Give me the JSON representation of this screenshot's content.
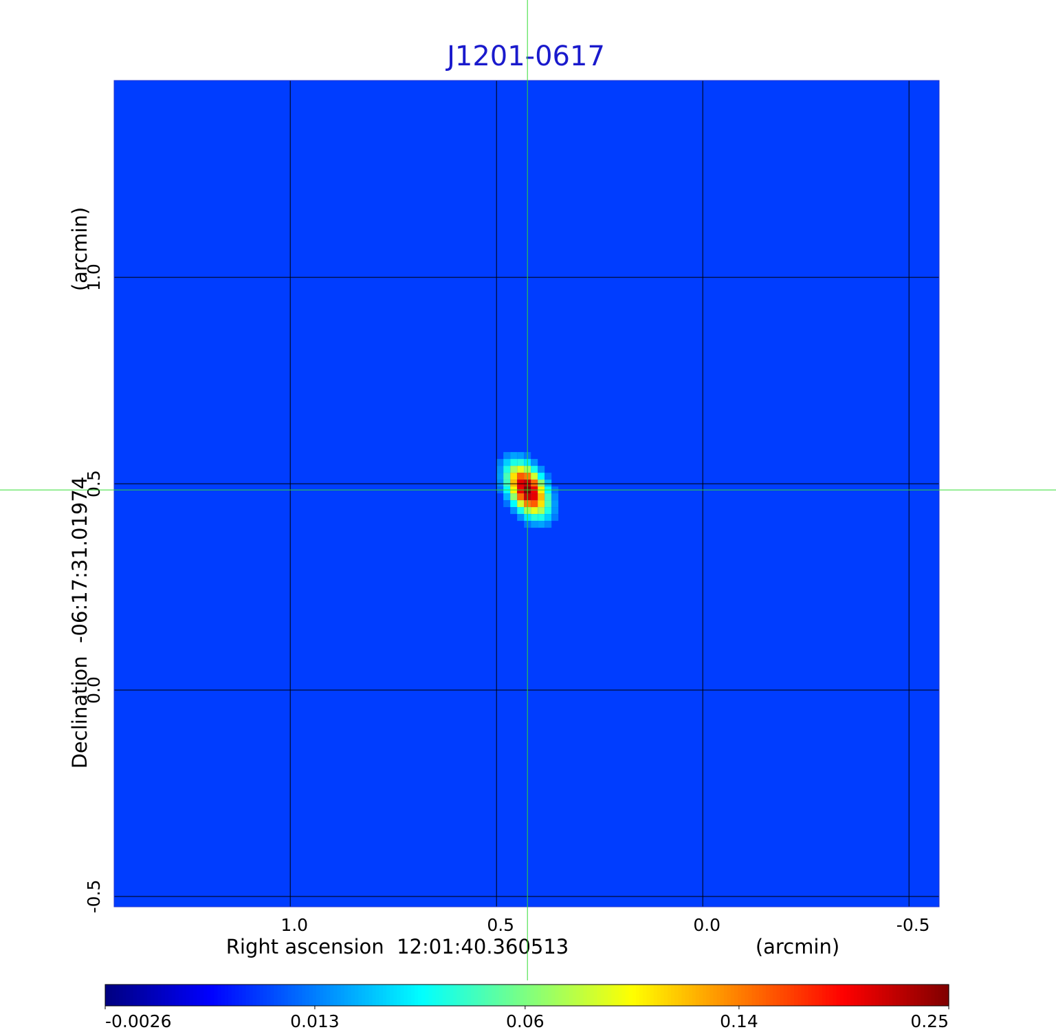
{
  "chart_data": {
    "type": "image",
    "title": "J1201-0617",
    "xlabel": "Right ascension  12:01:40.360513",
    "xunit": "(arcmin)",
    "ylabel": "Declination  -06:17:31.01974",
    "yunit": "(arcmin)",
    "xlim": [
      1.427,
      -0.573
    ],
    "ylim": [
      -0.525,
      1.477
    ],
    "xticks": [
      {
        "value": 1,
        "label": "1.0"
      },
      0.5,
      {
        "value": 0,
        "label": "0.0"
      },
      -0.5
    ],
    "yticks": [
      {
        "value": 1,
        "label": "1.0"
      },
      0.5,
      {
        "value": 0,
        "label": "0.0"
      },
      -0.5
    ],
    "grid": true,
    "colormap": "jet",
    "color_scale": "sqrt",
    "clim": [
      -0.0026,
      0.25
    ],
    "cticks": [
      -0.0026,
      0.013,
      0.06,
      0.14,
      0.25
    ],
    "background": 0.006,
    "source": {
      "x": 0.425,
      "y": 0.485,
      "peak": 0.25
    },
    "crosshair_color": "#33dd33",
    "title_color": "#1a1acc"
  }
}
